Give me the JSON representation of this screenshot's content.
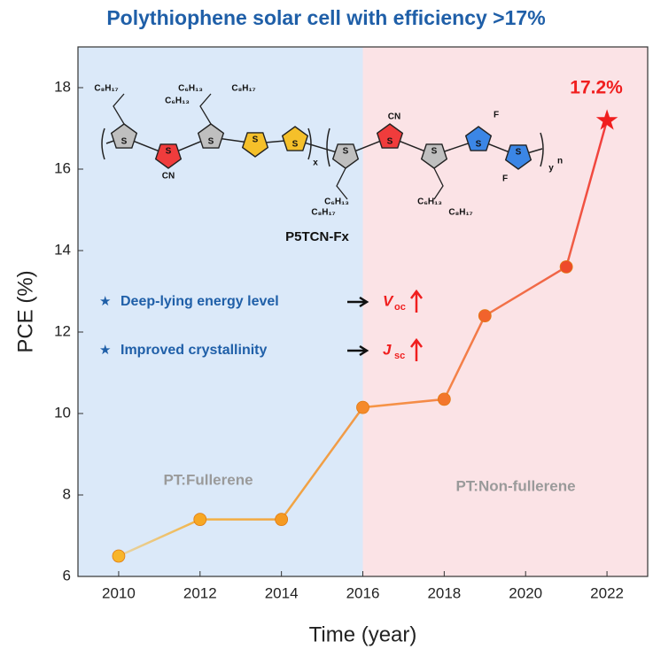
{
  "chart_data": {
    "type": "line",
    "title": "Polythiophene solar cell with efficiency >17%",
    "xlabel": "Time (year)",
    "ylabel": "PCE (%)",
    "x": [
      2010,
      2012,
      2014,
      2016,
      2018,
      2019,
      2021,
      2022
    ],
    "series": [
      {
        "name": "PCE",
        "values": [
          6.5,
          7.4,
          7.4,
          10.15,
          10.35,
          12.4,
          13.6,
          17.2
        ],
        "point_colors": [
          "#f8b52a",
          "#f7a824",
          "#f59a22",
          "#f58a2a",
          "#f3762c",
          "#f1632c",
          "#ee4b2a",
          "#f01e1e"
        ]
      }
    ],
    "point_label": "17.2%",
    "xlim": [
      2009,
      2023
    ],
    "ylim": [
      6,
      19
    ],
    "xticks": [
      2010,
      2012,
      2014,
      2016,
      2018,
      2020,
      2022
    ],
    "yticks": [
      6,
      8,
      10,
      12,
      14,
      16,
      18
    ],
    "regions": [
      {
        "label": "PT:Fullerene",
        "from": 2009,
        "to": 2016,
        "color": "#dbe9f9"
      },
      {
        "label": "PT:Non-fullerene",
        "from": 2016,
        "to": 2023,
        "color": "#fbe3e6"
      }
    ],
    "annotations": [
      {
        "text": "Deep-lying energy level",
        "symbol": "V",
        "sub": "oc"
      },
      {
        "text": "Improved crystallinity",
        "symbol": "J",
        "sub": "sc"
      }
    ],
    "star": "★",
    "structure": {
      "name": "P5TCN-Fx",
      "rings": [
        {
          "label": "S",
          "color": "#bfbfbf"
        },
        {
          "label": "S",
          "color": "#f03c3c"
        },
        {
          "label": "S",
          "color": "#bfbfbf"
        },
        {
          "label": "S",
          "color": "#f5c02a"
        },
        {
          "label": "S",
          "color": "#f5c02a"
        },
        {
          "label": "S",
          "color": "#bfbfbf"
        },
        {
          "label": "S",
          "color": "#f03c3c"
        },
        {
          "label": "S",
          "color": "#bfbfbf"
        },
        {
          "label": "S",
          "color": "#3b86e6"
        },
        {
          "label": "S",
          "color": "#3b86e6"
        }
      ],
      "labels": [
        "C₈H₁₇",
        "C₆H₁₃",
        "C₆H₁₃",
        "C₈H₁₇",
        "CN",
        "x",
        "C₆H₁₃",
        "C₈H₁₇",
        "CN",
        "C₆H₁₃",
        "C₈H₁₇",
        "F",
        "F",
        "y",
        "n"
      ]
    }
  }
}
